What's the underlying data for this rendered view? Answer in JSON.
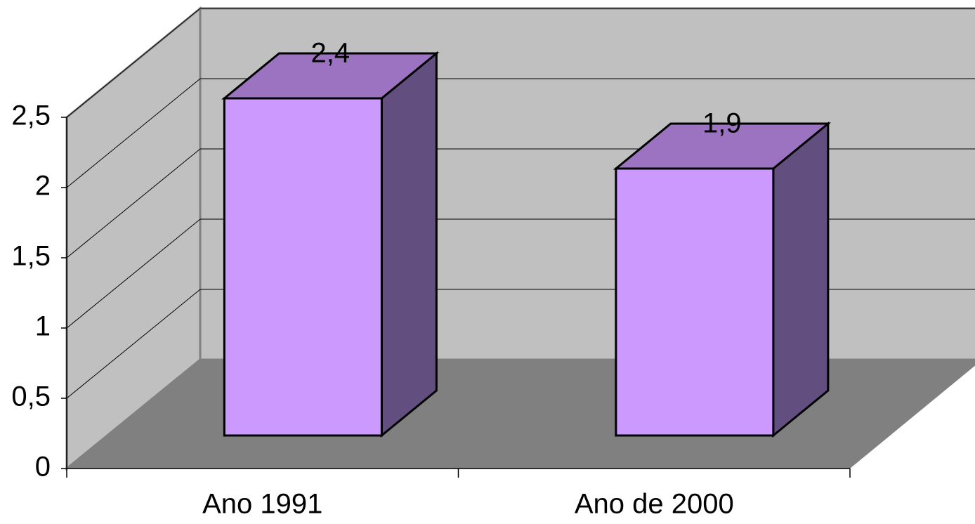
{
  "chart_data": {
    "type": "bar3d",
    "categories": [
      "Ano 1991",
      "Ano de 2000"
    ],
    "values": [
      2.4,
      1.9
    ],
    "value_labels": [
      "2,4",
      "1,9"
    ],
    "ylim": [
      0,
      2.5
    ],
    "yticks": [
      0,
      {
        "value": 0.5,
        "label": "0,5"
      },
      1,
      {
        "value": 1.5,
        "label": "1,5"
      },
      2,
      {
        "value": 2.5,
        "label": "2,5"
      }
    ],
    "grid": true,
    "color": "#cc99ff"
  }
}
